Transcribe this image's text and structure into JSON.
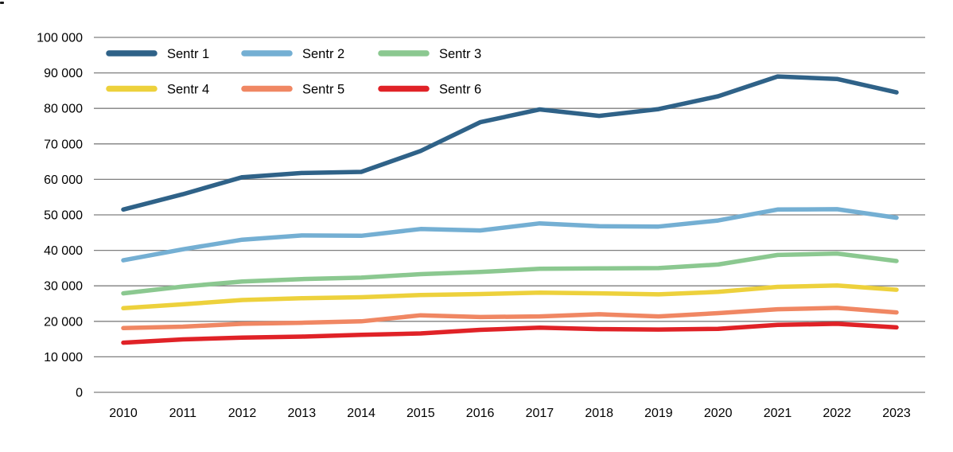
{
  "chart_data": {
    "type": "line",
    "title": "",
    "xlabel": "",
    "ylabel": "",
    "grid": "horizontal",
    "grid_color": "#7f7f7f",
    "text_color": "#000000",
    "background_color": "#ffffff",
    "legend_position": "top-left",
    "legend_layout": "2 rows x 3 columns",
    "ylim": [
      0,
      100000
    ],
    "y_tick_step": 10000,
    "y_ticks": [
      {
        "value": 0,
        "label": "0"
      },
      {
        "value": 10000,
        "label": "10 000"
      },
      {
        "value": 20000,
        "label": "20 000"
      },
      {
        "value": 30000,
        "label": "30 000"
      },
      {
        "value": 40000,
        "label": "40 000"
      },
      {
        "value": 50000,
        "label": "50 000"
      },
      {
        "value": 60000,
        "label": "60 000"
      },
      {
        "value": 70000,
        "label": "70 000"
      },
      {
        "value": 80000,
        "label": "80 000"
      },
      {
        "value": 90000,
        "label": "90 000"
      },
      {
        "value": 100000,
        "label": "100 000"
      }
    ],
    "categories": [
      "2010",
      "2011",
      "2012",
      "2013",
      "2014",
      "2015",
      "2016",
      "2017",
      "2018",
      "2019",
      "2020",
      "2021",
      "2022",
      "2023"
    ],
    "series": [
      {
        "name": "Sentr 1",
        "color": "#2f6288",
        "values": [
          51500,
          55800,
          60600,
          61800,
          62100,
          68000,
          76100,
          79700,
          77900,
          79800,
          83400,
          89000,
          88300,
          84500
        ]
      },
      {
        "name": "Sentr 2",
        "color": "#74afd3",
        "values": [
          37200,
          40300,
          43000,
          44200,
          44100,
          46000,
          45600,
          47600,
          46800,
          46700,
          48400,
          51500,
          51600,
          49200
        ]
      },
      {
        "name": "Sentr 3",
        "color": "#8bc890",
        "values": [
          27900,
          29800,
          31200,
          31900,
          32300,
          33300,
          33900,
          34800,
          34900,
          35000,
          36000,
          38700,
          39100,
          37000
        ]
      },
      {
        "name": "Sentr 4",
        "color": "#edd13c",
        "values": [
          23700,
          24800,
          26000,
          26500,
          26800,
          27400,
          27700,
          28100,
          27900,
          27600,
          28300,
          29700,
          30100,
          28900
        ]
      },
      {
        "name": "Sentr 5",
        "color": "#f08763",
        "values": [
          18100,
          18500,
          19300,
          19600,
          20000,
          21700,
          21200,
          21400,
          22000,
          21400,
          22300,
          23400,
          23800,
          22500
        ]
      },
      {
        "name": "Sentr 6",
        "color": "#e02227",
        "values": [
          14000,
          14900,
          15400,
          15700,
          16200,
          16600,
          17600,
          18200,
          17800,
          17700,
          17900,
          19000,
          19300,
          18300
        ]
      }
    ]
  }
}
